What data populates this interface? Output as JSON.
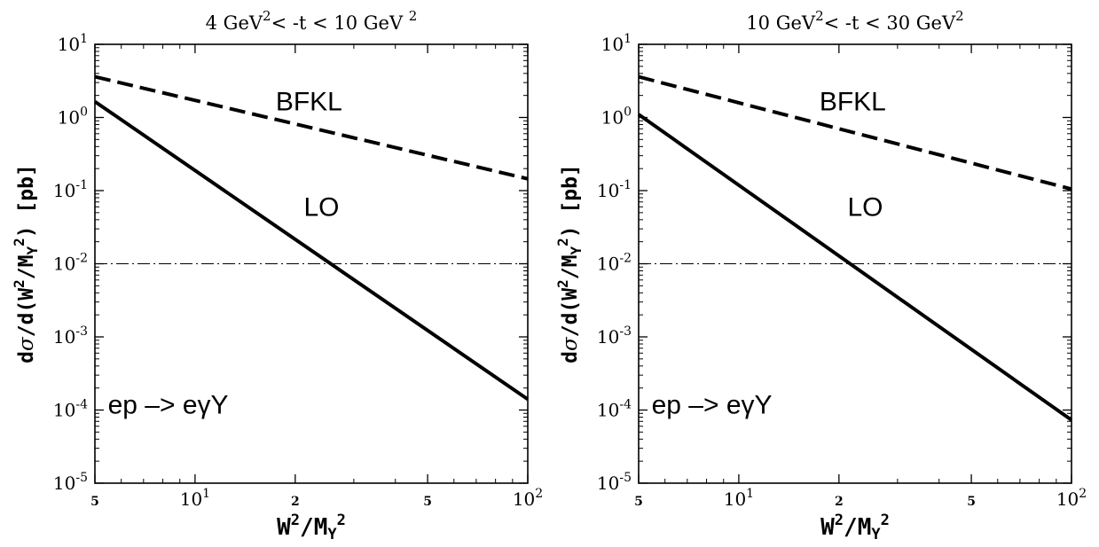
{
  "figure": {
    "ylabel_prefix": "d",
    "ylabel_sigma": "σ",
    "ylabel_mid": "/d(W",
    "ylabel_sup2a": "2",
    "ylabel_mid2": "/M",
    "ylabel_subY": "Y",
    "ylabel_sup2b": "2",
    "ylabel_end": ") [pb]",
    "xlabel_W": "W",
    "xlabel_sup2a": "2",
    "xlabel_slash": "/M",
    "xlabel_subY": "Y",
    "xlabel_sup2b": "2"
  },
  "chart_data": [
    {
      "type": "line",
      "title_parts": [
        "4 GeV",
        "2",
        "< -t < 10 GeV ",
        "2"
      ],
      "xscale": "log",
      "yscale": "log",
      "xlim": [
        5,
        100
      ],
      "ylim": [
        1e-05,
        10
      ],
      "x_ticks": [
        {
          "value": 5,
          "base": "5",
          "exp": ""
        },
        {
          "value": 10,
          "base": "10",
          "exp": "1"
        },
        {
          "value": 20,
          "base": "2",
          "exp": ""
        },
        {
          "value": 50,
          "base": "5",
          "exp": ""
        },
        {
          "value": 100,
          "base": "10",
          "exp": "2"
        }
      ],
      "y_ticks": [
        {
          "value": 1e-05,
          "base": "10",
          "exp": "-5"
        },
        {
          "value": 0.0001,
          "base": "10",
          "exp": "-4"
        },
        {
          "value": 0.001,
          "base": "10",
          "exp": "-3"
        },
        {
          "value": 0.01,
          "base": "10",
          "exp": "-2"
        },
        {
          "value": 0.1,
          "base": "10",
          "exp": "-1"
        },
        {
          "value": 1,
          "base": "10",
          "exp": "0"
        },
        {
          "value": 10,
          "base": "10",
          "exp": "1"
        }
      ],
      "series": [
        {
          "name": "BFKL",
          "style": "dashed",
          "x": [
            5,
            100
          ],
          "y": [
            3.6,
            0.145
          ]
        },
        {
          "name": "LO",
          "style": "solid",
          "x": [
            5,
            100
          ],
          "y": [
            1.65,
            0.00014
          ]
        }
      ],
      "reference_line": {
        "y": 0.01,
        "style": "dash-dot"
      },
      "annotations": [
        {
          "text": "BFKL",
          "x": 22,
          "y": 1.25
        },
        {
          "text": "LO",
          "x": 24,
          "y": 0.045
        },
        {
          "text_parts": [
            "ep",
            "–>",
            "eγY"
          ],
          "x": 8.3,
          "y": 9e-05
        }
      ]
    },
    {
      "type": "line",
      "title_parts": [
        "10 GeV",
        "2",
        "< -t < 30 GeV",
        "2"
      ],
      "xscale": "log",
      "yscale": "log",
      "xlim": [
        5,
        100
      ],
      "ylim": [
        1e-05,
        10
      ],
      "x_ticks": [
        {
          "value": 5,
          "base": "5",
          "exp": ""
        },
        {
          "value": 10,
          "base": "10",
          "exp": "1"
        },
        {
          "value": 20,
          "base": "2",
          "exp": ""
        },
        {
          "value": 50,
          "base": "5",
          "exp": ""
        },
        {
          "value": 100,
          "base": "10",
          "exp": "2"
        }
      ],
      "y_ticks": [
        {
          "value": 1e-05,
          "base": "10",
          "exp": "-5"
        },
        {
          "value": 0.0001,
          "base": "10",
          "exp": "-4"
        },
        {
          "value": 0.001,
          "base": "10",
          "exp": "-3"
        },
        {
          "value": 0.01,
          "base": "10",
          "exp": "-2"
        },
        {
          "value": 0.1,
          "base": "10",
          "exp": "-1"
        },
        {
          "value": 1,
          "base": "10",
          "exp": "0"
        },
        {
          "value": 10,
          "base": "10",
          "exp": "1"
        }
      ],
      "series": [
        {
          "name": "BFKL",
          "style": "dashed",
          "x": [
            5,
            100
          ],
          "y": [
            3.6,
            0.105
          ]
        },
        {
          "name": "LO",
          "style": "solid",
          "x": [
            5,
            100
          ],
          "y": [
            1.1,
            7.3e-05
          ]
        }
      ],
      "reference_line": {
        "y": 0.01,
        "style": "dash-dot"
      },
      "annotations": [
        {
          "text": "BFKL",
          "x": 22,
          "y": 1.25
        },
        {
          "text": "LO",
          "x": 24,
          "y": 0.045
        },
        {
          "text_parts": [
            "ep",
            "–>",
            "eγY"
          ],
          "x": 8.3,
          "y": 9e-05
        }
      ]
    }
  ]
}
